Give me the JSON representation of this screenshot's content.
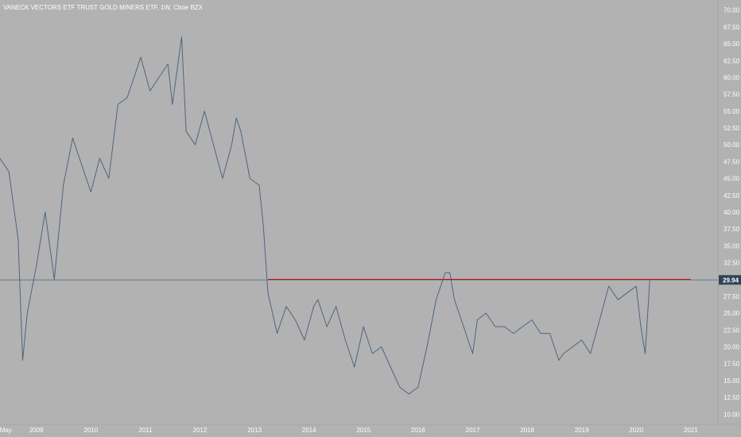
{
  "header": {
    "title": "VANECK VECTORS ETF TRUST GOLD MINERS ETF, 1W, Cboe BZX"
  },
  "colors": {
    "background": "#b2b2b2",
    "price_line": "#4f6580",
    "resistance_line": "#e60000",
    "text": "#ffffff",
    "last_price_badge": "#2f4356",
    "axis_border": "#a5a5a5"
  },
  "chart_data": {
    "type": "line",
    "title": "VANECK VECTORS ETF TRUST GOLD MINERS ETF, 1W, Cboe BZX",
    "xlabel": "",
    "ylabel": "",
    "ylim": [
      8.5,
      71.5
    ],
    "y_ticks": [
      "10.00",
      "12.50",
      "15.00",
      "17.50",
      "20.00",
      "22.50",
      "25.00",
      "27.50",
      "30.00",
      "32.50",
      "35.00",
      "37.50",
      "40.00",
      "42.50",
      "45.00",
      "47.50",
      "50.00",
      "52.50",
      "55.00",
      "57.50",
      "60.00",
      "62.50",
      "65.00",
      "67.50",
      "70.00"
    ],
    "x_ticks": [
      {
        "label": "May",
        "date": "2008-05"
      },
      {
        "label": "2009",
        "date": "2009-01"
      },
      {
        "label": "2010",
        "date": "2010-01"
      },
      {
        "label": "2011",
        "date": "2011-01"
      },
      {
        "label": "2012",
        "date": "2012-01"
      },
      {
        "label": "2013",
        "date": "2013-01"
      },
      {
        "label": "2014",
        "date": "2014-01"
      },
      {
        "label": "2015",
        "date": "2015-01"
      },
      {
        "label": "2016",
        "date": "2016-01"
      },
      {
        "label": "2017",
        "date": "2017-01"
      },
      {
        "label": "2018",
        "date": "2018-01"
      },
      {
        "label": "2019",
        "date": "2019-01"
      },
      {
        "label": "2020",
        "date": "2020-01"
      },
      {
        "label": "2021",
        "date": "2021-01"
      }
    ],
    "last_price": "29.94",
    "series": [
      {
        "x": [
          "2008-05",
          "2008-07",
          "2008-09",
          "2008-10",
          "2008-11",
          "2009-01",
          "2009-03",
          "2009-05",
          "2009-07",
          "2009-09",
          "2009-11",
          "2010-01",
          "2010-03",
          "2010-05",
          "2010-07",
          "2010-09",
          "2010-11",
          "2010-12",
          "2011-02",
          "2011-04",
          "2011-06",
          "2011-07",
          "2011-09",
          "2011-10",
          "2011-12",
          "2012-02",
          "2012-04",
          "2012-06",
          "2012-08",
          "2012-09",
          "2012-10",
          "2012-12",
          "2013-02",
          "2013-03",
          "2013-04",
          "2013-06",
          "2013-08",
          "2013-10",
          "2013-12",
          "2014-02",
          "2014-03",
          "2014-05",
          "2014-07",
          "2014-09",
          "2014-11",
          "2015-01",
          "2015-03",
          "2015-05",
          "2015-07",
          "2015-09",
          "2015-11",
          "2016-01",
          "2016-03",
          "2016-05",
          "2016-07",
          "2016-08",
          "2016-09",
          "2016-11",
          "2017-01",
          "2017-02",
          "2017-04",
          "2017-06",
          "2017-08",
          "2017-10",
          "2017-12",
          "2018-02",
          "2018-04",
          "2018-06",
          "2018-08",
          "2018-09",
          "2018-11",
          "2019-01",
          "2019-03",
          "2019-05",
          "2019-07",
          "2019-09",
          "2019-11",
          "2020-01",
          "2020-02",
          "2020-03",
          "2020-04"
        ],
        "y": [
          48,
          46,
          36,
          18,
          25,
          32,
          40,
          30,
          44,
          51,
          47,
          43,
          48,
          45,
          56,
          57,
          61,
          63,
          58,
          60,
          62,
          56,
          66,
          52,
          50,
          55,
          50,
          45,
          50,
          54,
          52,
          45,
          44,
          38,
          28,
          22,
          26,
          24,
          21,
          26,
          27,
          23,
          26,
          21,
          17,
          23,
          19,
          20,
          17,
          14,
          13,
          14,
          20,
          27,
          31,
          31,
          27,
          23,
          19,
          24,
          25,
          23,
          23,
          22,
          23,
          24,
          22,
          22,
          18,
          19,
          20,
          21,
          19,
          24,
          29,
          27,
          28,
          29,
          23,
          19,
          30
        ]
      },
      {
        "name": "",
        "x": [
          "2013-04",
          "2021-01"
        ],
        "y": [
          30.0,
          30.0
        ]
      }
    ],
    "grid": false,
    "legend": "none"
  }
}
